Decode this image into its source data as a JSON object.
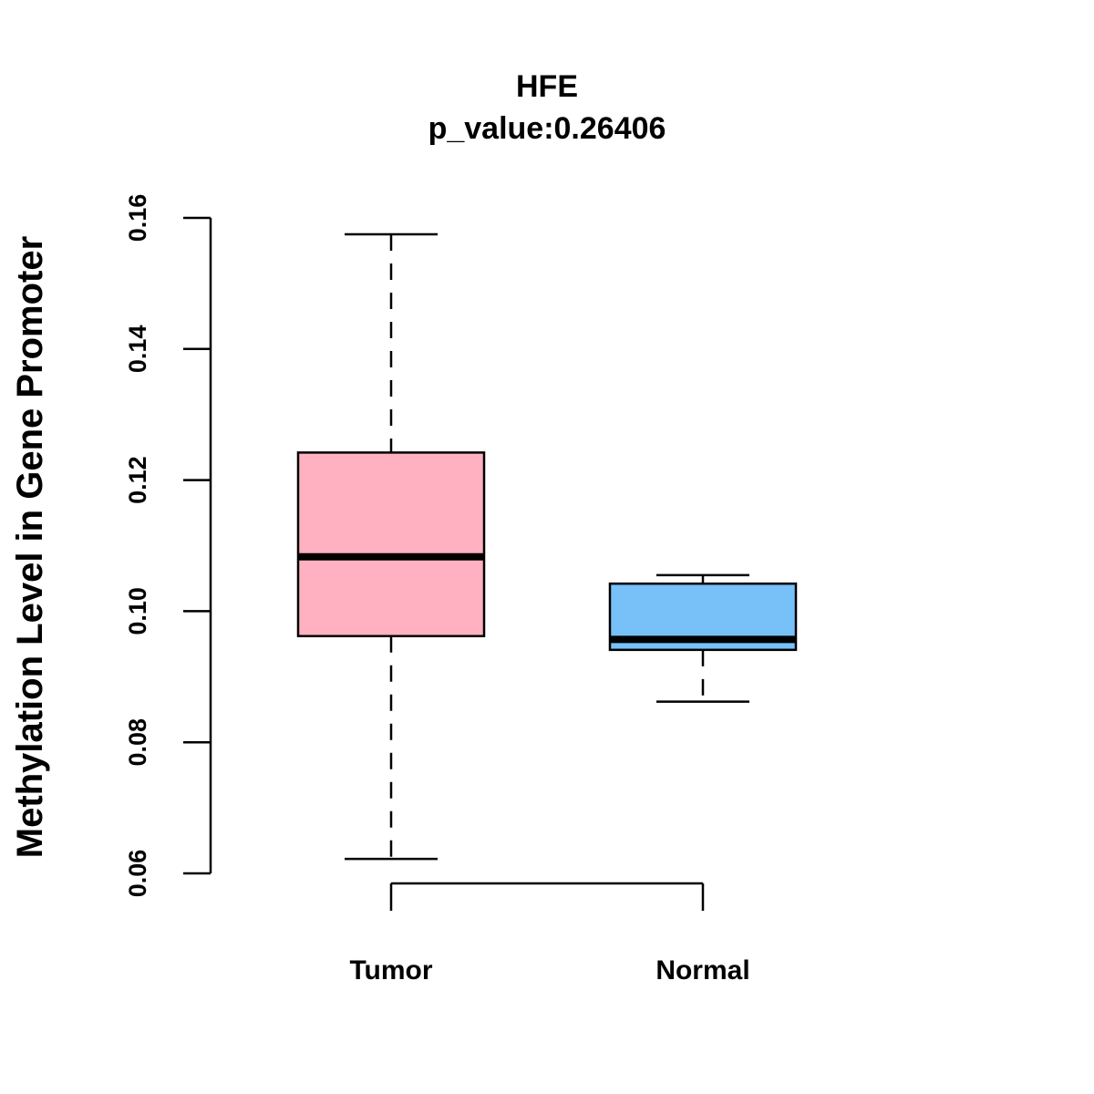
{
  "chart_data": {
    "type": "boxplot",
    "title": "HFE",
    "subtitle": "p_value:0.26406",
    "xlabel": "",
    "ylabel": "Methylation Level in Gene Promoter",
    "ylim": [
      0.06,
      0.16
    ],
    "yticks": [
      "0.06",
      "0.08",
      "0.10",
      "0.12",
      "0.14",
      "0.16"
    ],
    "categories": [
      "Tumor",
      "Normal"
    ],
    "boxes": [
      {
        "name": "Tumor",
        "whisker_low": 0.0622,
        "q1": 0.0962,
        "median": 0.1083,
        "q3": 0.1242,
        "whisker_high": 0.1575,
        "color": "#FFB1C1"
      },
      {
        "name": "Normal",
        "whisker_low": 0.0862,
        "q1": 0.0941,
        "median": 0.0957,
        "q3": 0.1042,
        "whisker_high": 0.1055,
        "color": "#77C1F8"
      }
    ],
    "grid": false,
    "legend": "none"
  }
}
